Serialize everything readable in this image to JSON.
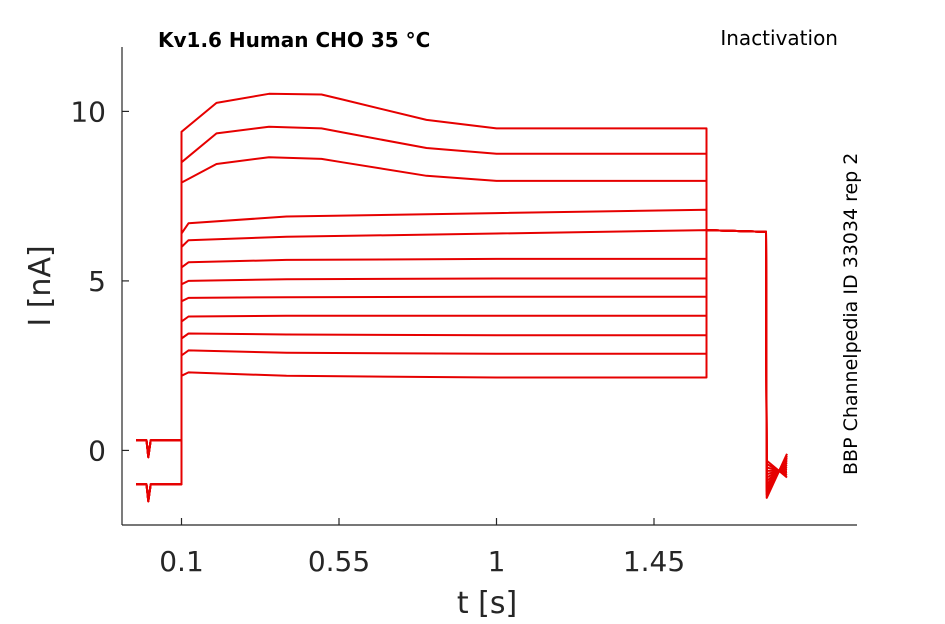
{
  "chart_data": {
    "type": "line",
    "title": "Kv1.6  Human  CHO  35 °C",
    "protocol": "Inactivation",
    "side_label": "BBP Channelpedia ID 33034 rep 2",
    "xlabel": "t [s]",
    "ylabel": "I [nA]",
    "xlim": [
      -0.07,
      2.03
    ],
    "ylim": [
      -2.2,
      11.9
    ],
    "xticks": [
      0.1,
      0.55,
      1,
      1.45
    ],
    "xtick_labels": [
      "0.1",
      "0.55",
      "1",
      "1.45"
    ],
    "yticks": [
      0,
      5,
      10
    ],
    "ytick_labels": [
      "0",
      "5",
      "10"
    ],
    "grid": false,
    "legend": "none",
    "color": "#e60000",
    "step_start": 0.1,
    "step_end": 1.6,
    "tail_end": 1.77,
    "series": [
      {
        "start": 9.4,
        "points": [
          [
            0.1,
            9.4
          ],
          [
            0.2,
            10.25
          ],
          [
            0.35,
            10.52
          ],
          [
            0.5,
            10.5
          ],
          [
            0.56,
            10.35
          ],
          [
            0.8,
            9.75
          ],
          [
            1.0,
            9.5
          ],
          [
            1.6,
            9.5
          ]
        ]
      },
      {
        "start": 8.5,
        "points": [
          [
            0.1,
            8.5
          ],
          [
            0.2,
            9.35
          ],
          [
            0.35,
            9.55
          ],
          [
            0.5,
            9.5
          ],
          [
            0.56,
            9.38
          ],
          [
            0.8,
            8.92
          ],
          [
            1.0,
            8.75
          ],
          [
            1.6,
            8.75
          ]
        ]
      },
      {
        "start": 7.9,
        "points": [
          [
            0.1,
            7.9
          ],
          [
            0.2,
            8.45
          ],
          [
            0.35,
            8.65
          ],
          [
            0.5,
            8.6
          ],
          [
            0.56,
            8.5
          ],
          [
            0.8,
            8.1
          ],
          [
            1.0,
            7.95
          ],
          [
            1.6,
            7.95
          ]
        ]
      },
      {
        "start": 6.4,
        "points": [
          [
            0.1,
            6.4
          ],
          [
            0.12,
            6.7
          ],
          [
            0.4,
            6.9
          ],
          [
            1.0,
            7.0
          ],
          [
            1.6,
            7.1
          ]
        ]
      },
      {
        "start": 6.0,
        "points": [
          [
            0.1,
            6.0
          ],
          [
            0.12,
            6.2
          ],
          [
            0.4,
            6.3
          ],
          [
            1.0,
            6.4
          ],
          [
            1.6,
            6.5
          ]
        ]
      },
      {
        "start": 5.4,
        "points": [
          [
            0.1,
            5.4
          ],
          [
            0.12,
            5.55
          ],
          [
            0.4,
            5.62
          ],
          [
            1.0,
            5.65
          ],
          [
            1.6,
            5.65
          ]
        ]
      },
      {
        "start": 4.9,
        "points": [
          [
            0.1,
            4.9
          ],
          [
            0.12,
            5.0
          ],
          [
            0.4,
            5.05
          ],
          [
            1.0,
            5.07
          ],
          [
            1.6,
            5.07
          ]
        ]
      },
      {
        "start": 4.4,
        "points": [
          [
            0.1,
            4.4
          ],
          [
            0.12,
            4.5
          ],
          [
            0.4,
            4.52
          ],
          [
            1.0,
            4.53
          ],
          [
            1.6,
            4.53
          ]
        ]
      },
      {
        "start": 3.8,
        "points": [
          [
            0.1,
            3.8
          ],
          [
            0.12,
            3.95
          ],
          [
            0.4,
            3.97
          ],
          [
            1.0,
            3.97
          ],
          [
            1.6,
            3.97
          ]
        ]
      },
      {
        "start": 3.3,
        "points": [
          [
            0.1,
            3.3
          ],
          [
            0.12,
            3.45
          ],
          [
            0.4,
            3.42
          ],
          [
            1.0,
            3.4
          ],
          [
            1.6,
            3.4
          ]
        ]
      },
      {
        "start": 2.8,
        "points": [
          [
            0.1,
            2.8
          ],
          [
            0.12,
            2.95
          ],
          [
            0.4,
            2.88
          ],
          [
            1.0,
            2.85
          ],
          [
            1.6,
            2.85
          ]
        ]
      },
      {
        "start": 2.2,
        "points": [
          [
            0.1,
            2.2
          ],
          [
            0.12,
            2.3
          ],
          [
            0.4,
            2.2
          ],
          [
            1.0,
            2.15
          ],
          [
            1.6,
            2.15
          ]
        ]
      }
    ]
  }
}
